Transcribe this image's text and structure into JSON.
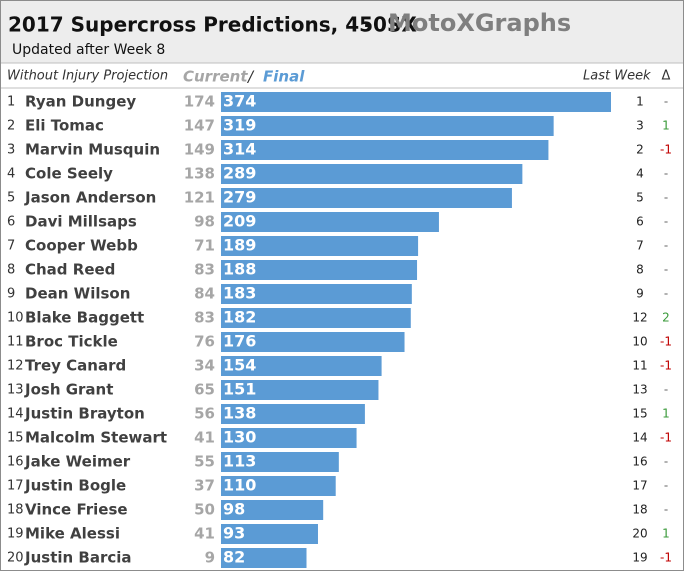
{
  "chart_data": {
    "type": "bar",
    "orientation": "horizontal",
    "title": "2017 Supercross Predictions, 450SX",
    "separator": "-",
    "brand": "MotoXGraphs",
    "subtitle": "Updated after Week 8",
    "header_label": "Without Injury Projection",
    "header_current": "Current",
    "header_slash": "/",
    "header_final": "Final",
    "header_last_week": "Last Week",
    "header_change": "Δ",
    "color": "#5b9bd5",
    "ranks": [
      1,
      2,
      3,
      4,
      5,
      6,
      7,
      8,
      9,
      10,
      11,
      12,
      13,
      14,
      15,
      16,
      17,
      18,
      19,
      20
    ],
    "categories": [
      "Ryan Dungey",
      "Eli Tomac",
      "Marvin Musquin",
      "Cole Seely",
      "Jason Anderson",
      "Davi Millsaps",
      "Cooper Webb",
      "Chad Reed",
      "Dean Wilson",
      "Blake Baggett",
      "Broc Tickle",
      "Trey Canard",
      "Josh Grant",
      "Justin Brayton",
      "Malcolm Stewart",
      "Jake Weimer",
      "Justin Bogle",
      "Vince Friese",
      "Mike Alessi",
      "Justin Barcia"
    ],
    "current": [
      174,
      147,
      149,
      138,
      121,
      98,
      71,
      83,
      84,
      83,
      76,
      34,
      65,
      56,
      41,
      55,
      37,
      50,
      41,
      9
    ],
    "values": [
      374,
      319,
      314,
      289,
      279,
      209,
      189,
      188,
      183,
      182,
      176,
      154,
      151,
      138,
      130,
      113,
      110,
      98,
      93,
      82
    ],
    "last_week": [
      1,
      3,
      2,
      4,
      5,
      6,
      7,
      8,
      9,
      12,
      10,
      11,
      13,
      15,
      14,
      16,
      17,
      18,
      20,
      19
    ],
    "change": [
      "-",
      "1",
      "-1",
      "-",
      "-",
      "-",
      "-",
      "-",
      "-",
      "2",
      "-1",
      "-1",
      "-",
      "1",
      "-1",
      "-",
      "-",
      "-",
      "1",
      "-1"
    ]
  }
}
